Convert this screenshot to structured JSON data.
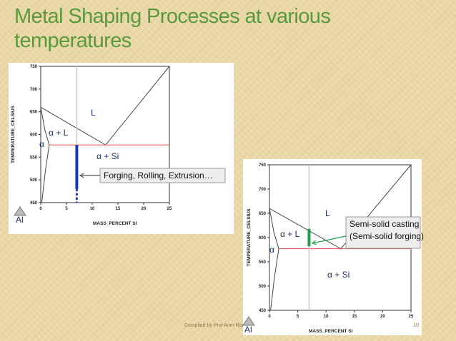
{
  "title_lines": [
    "Metal Shaping Processes at various",
    "temperatures"
  ],
  "figures": [
    {
      "y_axis_label": "TEMPERATURE_CELSIUS",
      "x_axis_label": "MASS_PERCENT SI",
      "y_ticks": [
        450,
        500,
        550,
        600,
        650,
        700,
        750
      ],
      "x_ticks": [
        0,
        5,
        10,
        15,
        20,
        25
      ],
      "labels": {
        "liquid": "L",
        "alpha_liquid": "α + L",
        "alpha": "α",
        "alpha_si": "α + Si",
        "element": "Al"
      },
      "callout": [
        "Forging, Rolling, Extrusion…"
      ]
    },
    {
      "y_axis_label": "TEMPERATURE_CELSIUS",
      "x_axis_label": "MASS_PERCENT SI",
      "y_ticks": [
        450,
        500,
        550,
        600,
        650,
        700,
        750
      ],
      "x_ticks": [
        0,
        5,
        10,
        15,
        20,
        25
      ],
      "labels": {
        "liquid": "L",
        "alpha_liquid": "α + L",
        "alpha": "α",
        "alpha_si": "α + Si",
        "element": "Al"
      },
      "callout": [
        "Semi-solid casting",
        "(Semi-solid forging)"
      ]
    }
  ],
  "footer": {
    "text": "Compiled by Prof Anm Rane",
    "page": "10"
  }
}
